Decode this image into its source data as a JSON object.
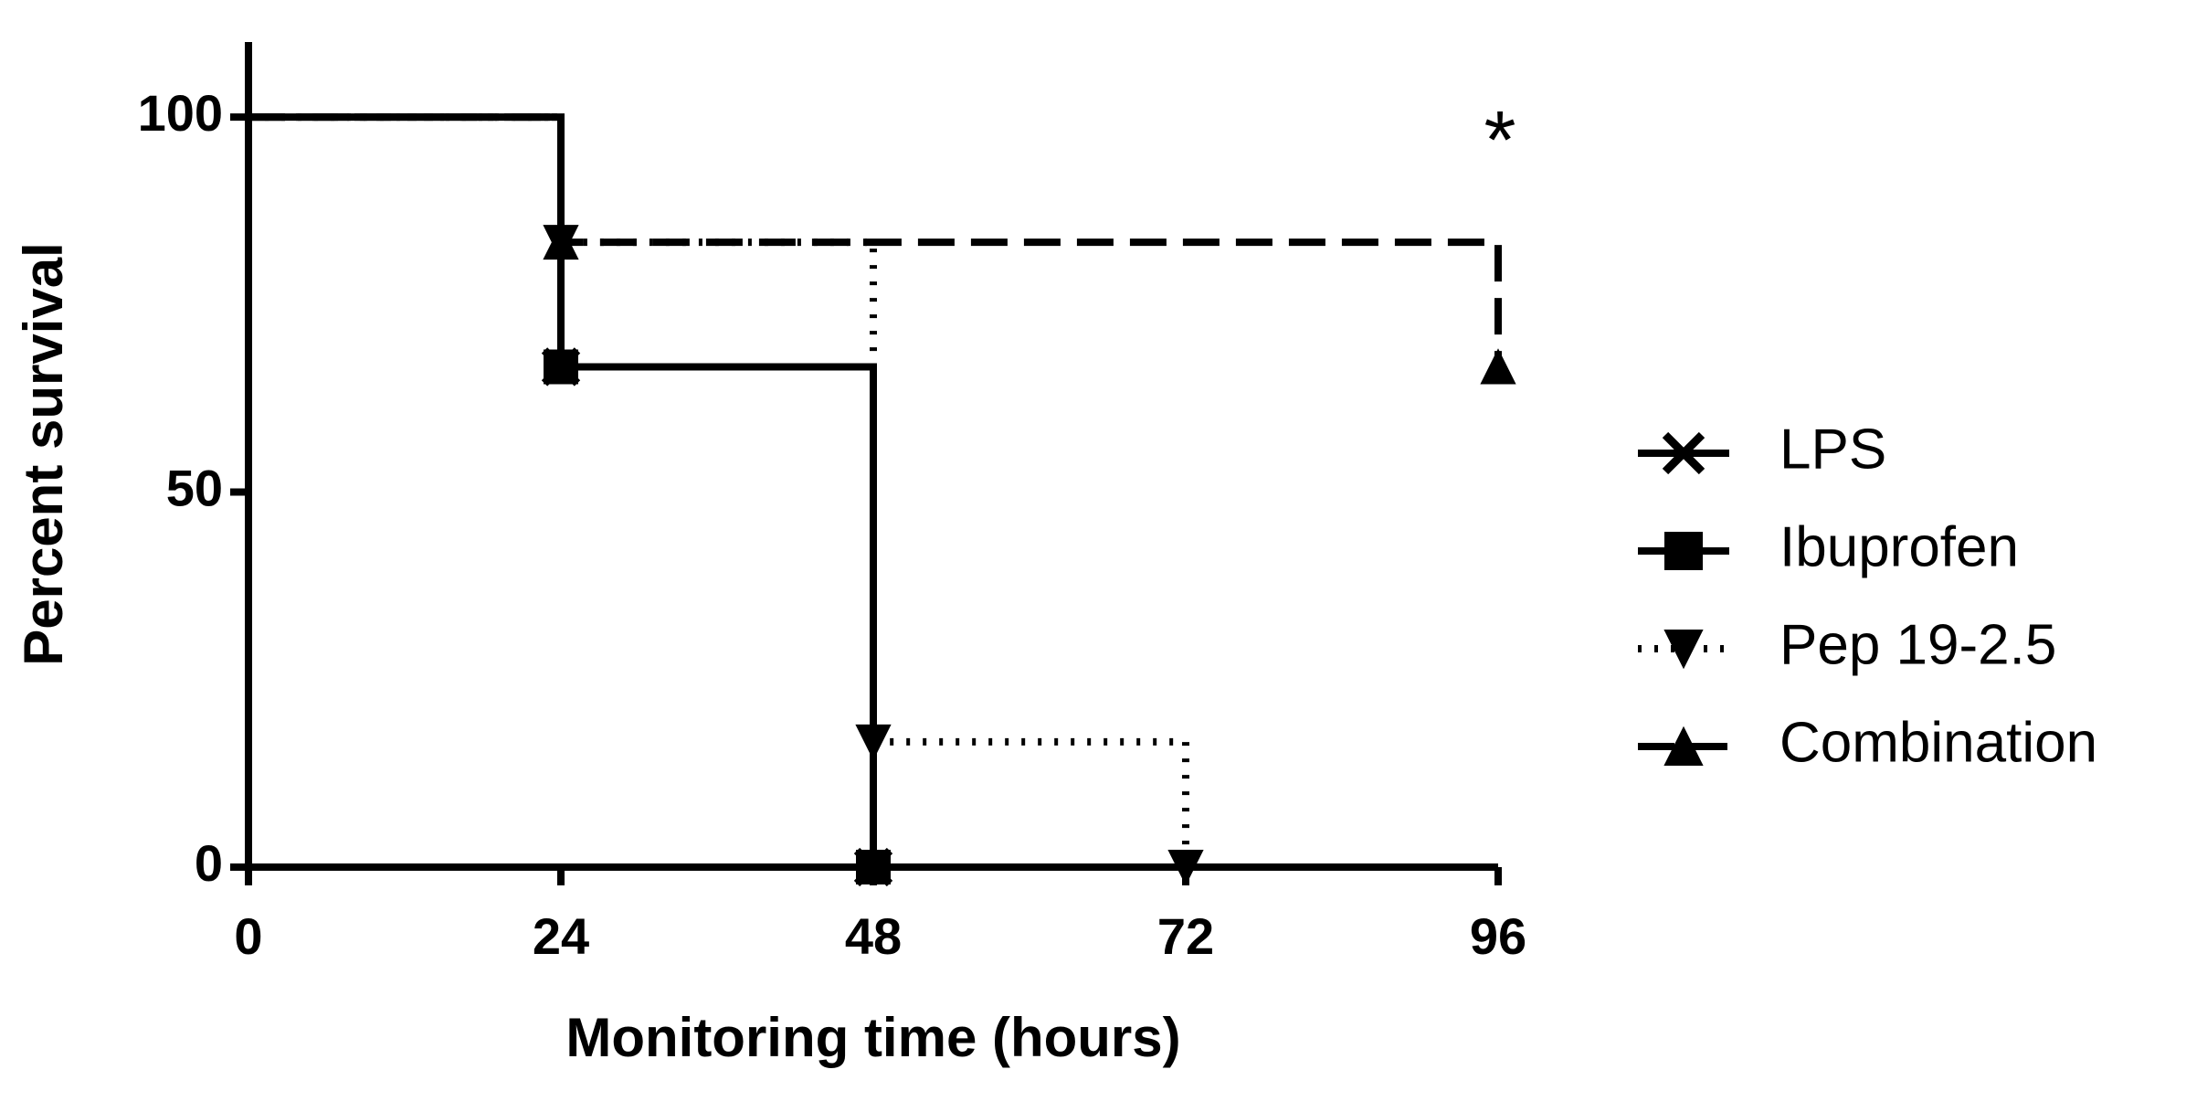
{
  "chart_data": {
    "type": "survival",
    "x_label": "Monitoring time (hours)",
    "y_label": "Percent survival",
    "annotation": "*",
    "xlim": [
      0,
      96
    ],
    "xticks": [
      0,
      24,
      48,
      72,
      96
    ],
    "ylim": [
      0,
      110
    ],
    "yticks": [
      0,
      50,
      100
    ],
    "legend": "right",
    "series": [
      {
        "name": "LPS",
        "color": "#000000",
        "dash": "solid",
        "marker": "x",
        "x": [
          0,
          24,
          48
        ],
        "values": [
          100,
          66.7,
          0
        ]
      },
      {
        "name": "Ibuprofen",
        "color": "#000000",
        "dash": "dashdot",
        "marker": "square",
        "x": [
          0,
          24,
          48
        ],
        "values": [
          100,
          66.7,
          0
        ]
      },
      {
        "name": "Pep 19-2.5",
        "color": "#000000",
        "dash": "dotted",
        "marker": "triangle-down",
        "x": [
          0,
          24,
          48,
          72
        ],
        "values": [
          100,
          83.3,
          16.7,
          0
        ]
      },
      {
        "name": "Combination",
        "color": "#000000",
        "dash": "dashed",
        "marker": "triangle-up",
        "x": [
          0,
          24,
          96
        ],
        "values": [
          100,
          83.3,
          66.7
        ]
      }
    ]
  }
}
